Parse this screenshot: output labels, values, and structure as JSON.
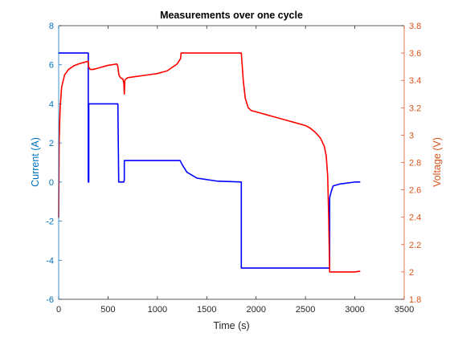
{
  "chart_data": {
    "type": "line",
    "title": "Measurements over one cycle",
    "xlabel": "Time (s)",
    "ylabel_left": "Current (A)",
    "ylabel_right": "Voltage (V)",
    "xlim": [
      0,
      3500
    ],
    "ylim_left": [
      -6,
      8
    ],
    "ylim_right": [
      1.8,
      3.8
    ],
    "x_ticks": [
      "0",
      "500",
      "1000",
      "1500",
      "2000",
      "2500",
      "3000",
      "3500"
    ],
    "y_left_ticks": [
      "-6",
      "-4",
      "-2",
      "0",
      "2",
      "4",
      "6",
      "8"
    ],
    "y_right_ticks": [
      "1.8",
      "2",
      "2.2",
      "2.4",
      "2.6",
      "2.8",
      "3",
      "3.2",
      "3.4",
      "3.6",
      "3.8"
    ],
    "grid": false,
    "left_axis_color": "#0072BD",
    "right_axis_color": "#D95319",
    "series": [
      {
        "axis": "left",
        "color": "#0000ff",
        "x": [
          0,
          300,
          300,
          305,
          305,
          600,
          600,
          608,
          608,
          650,
          660,
          665,
          665,
          700,
          1000,
          1230,
          1250,
          1300,
          1400,
          1600,
          1850,
          1850,
          1900,
          2500,
          2745,
          2745,
          2760,
          2780,
          2850,
          3000,
          3050
        ],
        "y": [
          6.6,
          6.6,
          0.0,
          0.0,
          4.0,
          4.0,
          3.9,
          0.1,
          0.0,
          0.0,
          0.0,
          0.1,
          1.1,
          1.1,
          1.1,
          1.1,
          0.9,
          0.5,
          0.2,
          0.05,
          0.0,
          -4.4,
          -4.4,
          -4.4,
          -4.4,
          -0.8,
          -0.5,
          -0.2,
          -0.1,
          0.0,
          0.0
        ]
      },
      {
        "axis": "right",
        "color": "#ff0000",
        "x": [
          0,
          5,
          15,
          30,
          60,
          100,
          150,
          200,
          250,
          300,
          302,
          320,
          350,
          400,
          500,
          590,
          600,
          610,
          625,
          650,
          660,
          665,
          670,
          680,
          700,
          800,
          900,
          1000,
          1100,
          1200,
          1235,
          1240,
          1300,
          1400,
          1600,
          1850,
          1855,
          1870,
          1890,
          1920,
          1950,
          2000,
          2100,
          2200,
          2300,
          2400,
          2500,
          2550,
          2600,
          2650,
          2690,
          2710,
          2725,
          2735,
          2745,
          2750,
          2760,
          3000,
          3050
        ],
        "y": [
          2.4,
          2.95,
          3.2,
          3.35,
          3.44,
          3.48,
          3.505,
          3.52,
          3.53,
          3.54,
          3.5,
          3.48,
          3.48,
          3.49,
          3.51,
          3.52,
          3.5,
          3.44,
          3.42,
          3.41,
          3.38,
          3.3,
          3.4,
          3.41,
          3.42,
          3.43,
          3.44,
          3.45,
          3.47,
          3.52,
          3.56,
          3.6,
          3.6,
          3.6,
          3.6,
          3.6,
          3.55,
          3.4,
          3.27,
          3.2,
          3.18,
          3.17,
          3.15,
          3.13,
          3.11,
          3.09,
          3.07,
          3.05,
          3.02,
          2.98,
          2.92,
          2.85,
          2.7,
          2.4,
          2.0,
          2.0,
          2.0,
          2.0,
          2.005
        ]
      }
    ]
  }
}
